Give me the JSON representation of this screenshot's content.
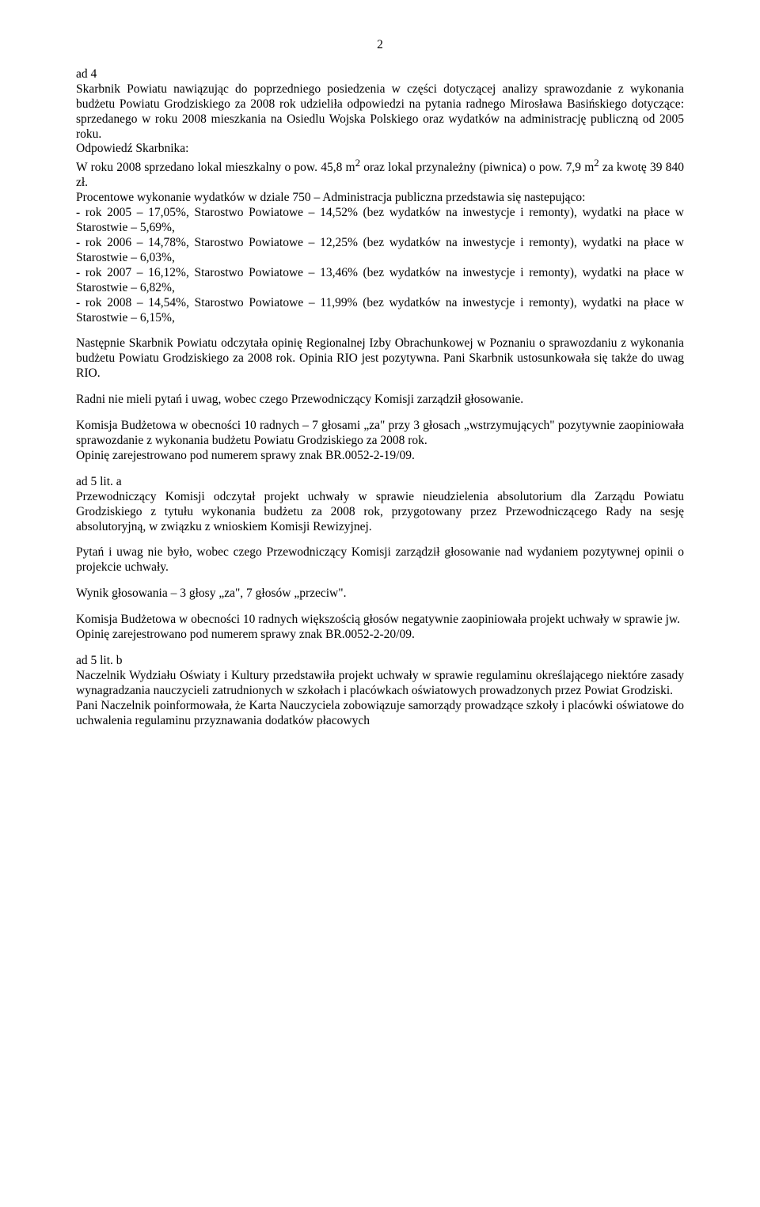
{
  "pageNumber": "2",
  "ad4": {
    "heading": "ad 4",
    "para1": "Skarbnik Powiatu nawiązując do poprzedniego posiedzenia w części dotyczącej analizy sprawozdanie z wykonania budżetu Powiatu  Grodziskiego za 2008 rok udzieliła odpowiedzi na pytania radnego Mirosława Basińskiego dotyczące: sprzedanego w roku 2008 mieszkania na Osiedlu Wojska Polskiego  oraz wydatków  na administrację publiczną od 2005 roku.",
    "odpLabel": "Odpowiedź Skarbnika:",
    "para2a": "W roku 2008 sprzedano lokal mieszkalny o pow. 45,8 m",
    "sup1": "2",
    "para2b": " oraz lokal przynależny (piwnica) o pow. 7,9 m",
    "sup2": "2",
    "para2c": " za kwotę 39 840 zł.",
    "para3": "Procentowe wykonanie wydatków  w dziale 750 – Administracja publiczna przedstawia się nastepująco:",
    "b1": "- rok 2005 – 17,05%,  Starostwo Powiatowe – 14,52% (bez wydatków na inwestycje i remonty), wydatki na płace w Starostwie – 5,69%,",
    "b2": "- rok 2006 – 14,78%, Starostwo Powiatowe – 12,25% (bez wydatków na inwestycje i remonty), wydatki na płace w Starostwie – 6,03%,",
    "b3": "- rok 2007 – 16,12%, Starostwo Powiatowe – 13,46% (bez wydatków na inwestycje i remonty), wydatki na płace w Starostwie – 6,82%,",
    "b4": "- rok 2008 – 14,54%, Starostwo Powiatowe – 11,99% (bez wydatków na inwestycje i remonty), wydatki na płace w Starostwie – 6,15%,",
    "para4": "Następnie Skarbnik Powiatu odczytała opinię Regionalnej Izby Obrachunkowej w Poznaniu o sprawozdaniu z wykonania budżetu Powiatu Grodziskiego za 2008 rok. Opinia RIO jest pozytywna. Pani Skarbnik ustosunkowała się także  do uwag RIO.",
    "para5": "Radni nie mieli pytań i uwag, wobec czego Przewodniczący Komisji zarządził głosowanie.",
    "para6": "Komisja Budżetowa w obecności 10 radnych – 7 głosami „za\" przy 3 głosach „wstrzymujących\"  pozytywnie zaopiniowała  sprawozdanie z wykonania budżetu Powiatu Grodziskiego za 2008 rok.",
    "para7": "Opinię zarejestrowano pod numerem sprawy znak BR.0052-2-19/09."
  },
  "ad5a": {
    "heading": "ad 5 lit. a",
    "para1": "Przewodniczący Komisji odczytał projekt uchwały w sprawie nieudzielenia absolutorium dla Zarządu Powiatu Grodziskiego z tytułu wykonania budżetu za 2008 rok, przygotowany przez Przewodniczącego Rady na sesję absolutoryjną, w związku z wnioskiem Komisji Rewizyjnej.",
    "para2": "Pytań i uwag nie było, wobec czego Przewodniczący Komisji zarządził głosowanie nad wydaniem pozytywnej opinii o projekcie uchwały.",
    "para3": "Wynik głosowania – 3 głosy „za\", 7 głosów „przeciw\".",
    "para4": "Komisja Budżetowa w obecności 10 radnych większością głosów negatywnie zaopiniowała projekt uchwały w sprawie jw.",
    "para5": "Opinię zarejestrowano pod numerem sprawy znak BR.0052-2-20/09."
  },
  "ad5b": {
    "heading": "ad 5 lit. b",
    "para1": "Naczelnik Wydziału Oświaty i Kultury przedstawiła projekt uchwały w sprawie regulaminu określającego niektóre zasady wynagradzania nauczycieli zatrudnionych w szkołach i placówkach oświatowych prowadzonych przez Powiat Grodziski.",
    "para2": "Pani Naczelnik poinformowała, że Karta Nauczyciela  zobowiązuje  samorządy prowadzące szkoły i placówki oświatowe  do uchwalenia regulaminu przyznawania dodatków płacowych"
  }
}
